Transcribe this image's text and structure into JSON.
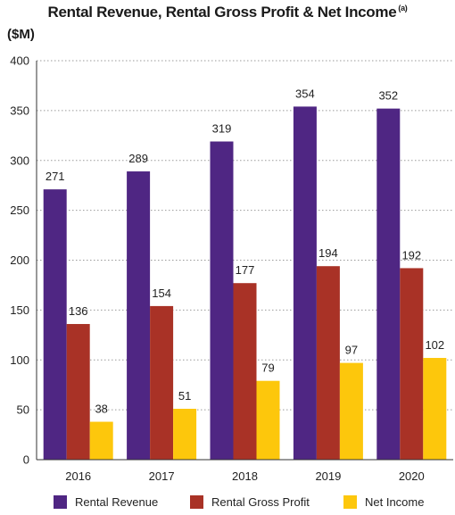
{
  "chart_data": {
    "type": "bar",
    "title": "Rental Revenue, Rental Gross Profit & Net Income",
    "title_footnote": "(a)",
    "ylabel": "($M)",
    "xlabel": "",
    "categories": [
      "2016",
      "2017",
      "2018",
      "2019",
      "2020"
    ],
    "series": [
      {
        "name": "Rental Revenue",
        "values": [
          271,
          289,
          319,
          354,
          352
        ],
        "color": "#4f2683"
      },
      {
        "name": "Rental Gross Profit",
        "values": [
          136,
          154,
          177,
          194,
          192
        ],
        "color": "#a93226"
      },
      {
        "name": "Net Income",
        "values": [
          38,
          51,
          79,
          97,
          102
        ],
        "color": "#fdc70c"
      }
    ],
    "ylim": [
      0,
      400
    ],
    "yticks": [
      0,
      50,
      100,
      150,
      200,
      250,
      300,
      350,
      400
    ],
    "grid": true,
    "grid_style": "dotted",
    "legend_position": "bottom"
  }
}
